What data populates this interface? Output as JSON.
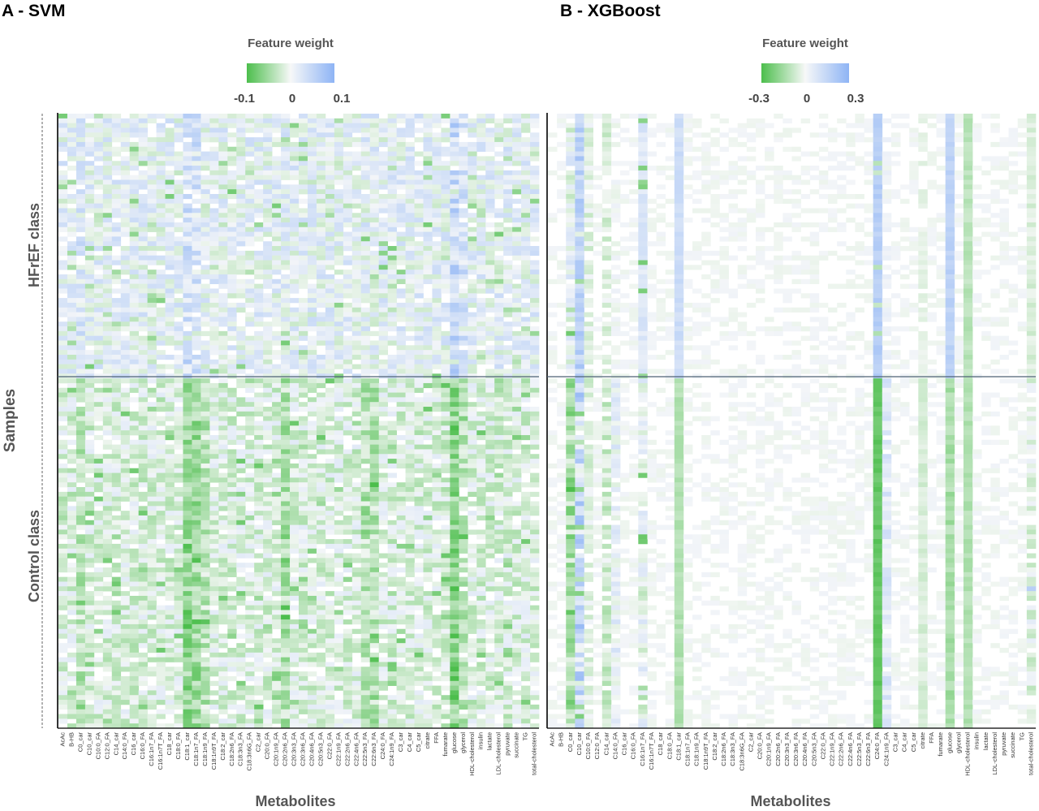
{
  "chart_data": [
    {
      "type": "heatmap",
      "panel_label": "A - SVM",
      "colorbar": {
        "title": "Feature weight",
        "ticks": [
          "-0.1",
          "0",
          "0.1"
        ],
        "range": [
          -0.1,
          0.1
        ],
        "colors": {
          "negative": "#4cbe4c",
          "zero": "#f7f8f8",
          "positive": "#8eb4f5"
        }
      },
      "xlabel": "Metabolites",
      "ylabel": "Samples",
      "row_groups": [
        "HFrEF class",
        "Control class"
      ],
      "categories": [
        "AcAc",
        "B-HB",
        "C0_car",
        "C10_car",
        "C10:0_FA",
        "C12:0_FA",
        "C14_car",
        "C14:0_FA",
        "C16_car",
        "C16:0_FA",
        "C16:1n7_FA",
        "C16:1n7T_FA",
        "C18_car",
        "C18:0_FA",
        "C18:1_car",
        "C18:1n7_FA",
        "C18:1n9_FA",
        "C18:1n9T_FA",
        "C18:2_car",
        "C18:2n6_FA",
        "C18:3n3_FA",
        "C18:3n6G_FA",
        "C2_car",
        "C20:0_FA",
        "C20:1n9_FA",
        "C20:2n6_FA",
        "C20:3n3_FA",
        "C20:3n6_FA",
        "C20:4n6_FA",
        "C20:5n3_FA",
        "C22:0_FA",
        "C22:1n9_FA",
        "C22:2n6_FA",
        "C22:4n6_FA",
        "C22:5n3_FA",
        "C22:6n3_FA",
        "C24:0_FA",
        "C24:1n9_FA",
        "C3_car",
        "C4_car",
        "C5_car",
        "citrate",
        "FFA",
        "fumarate",
        "glucose",
        "glycerol",
        "HDL-cholesterol",
        "insulin",
        "lactate",
        "LDL-cholesterol",
        "pyruvate",
        "succinate",
        "TG",
        "total-cholesterol"
      ]
    },
    {
      "type": "heatmap",
      "panel_label": "B - XGBoost",
      "colorbar": {
        "title": "Feature weight",
        "ticks": [
          "-0.3",
          "0",
          "0.3"
        ],
        "range": [
          -0.3,
          0.3
        ],
        "colors": {
          "negative": "#4cbe4c",
          "zero": "#f7f8f8",
          "positive": "#8eb4f5"
        }
      },
      "xlabel": "Metabolites",
      "categories": [
        "AcAc",
        "B-HB",
        "C0_car",
        "C10_car",
        "C10:0_FA",
        "C12:0_FA",
        "C14_car",
        "C14:0_FA",
        "C16_car",
        "C16:0_FA",
        "C16:1n7_FA",
        "C16:1n7T_FA",
        "C18_car",
        "C18:0_FA",
        "C18:1_car",
        "C18:1n7_FA",
        "C18:1n9_FA",
        "C18:1n9T_FA",
        "C18:2_car",
        "C18:2n6_FA",
        "C18:3n3_FA",
        "C18:3n6G_FA",
        "C2_car",
        "C20:0_FA",
        "C20:1n9_FA",
        "C20:2n6_FA",
        "C20:3n3_FA",
        "C20:3n6_FA",
        "C20:4n6_FA",
        "C20:5n3_FA",
        "C22:0_FA",
        "C22:1n9_FA",
        "C22:2n6_FA",
        "C22:4n6_FA",
        "C22:5n3_FA",
        "C22:6n3_FA",
        "C24:0_FA",
        "C24:1n9_FA",
        "C3_car",
        "C4_car",
        "C5_car",
        "citrate",
        "FFA",
        "fumarate",
        "glucose",
        "glycerol",
        "HDL-cholesterol",
        "insulin",
        "lactate",
        "LDL-cholesterol",
        "pyruvate",
        "succinate",
        "TG",
        "total-cholesterol"
      ]
    }
  ]
}
